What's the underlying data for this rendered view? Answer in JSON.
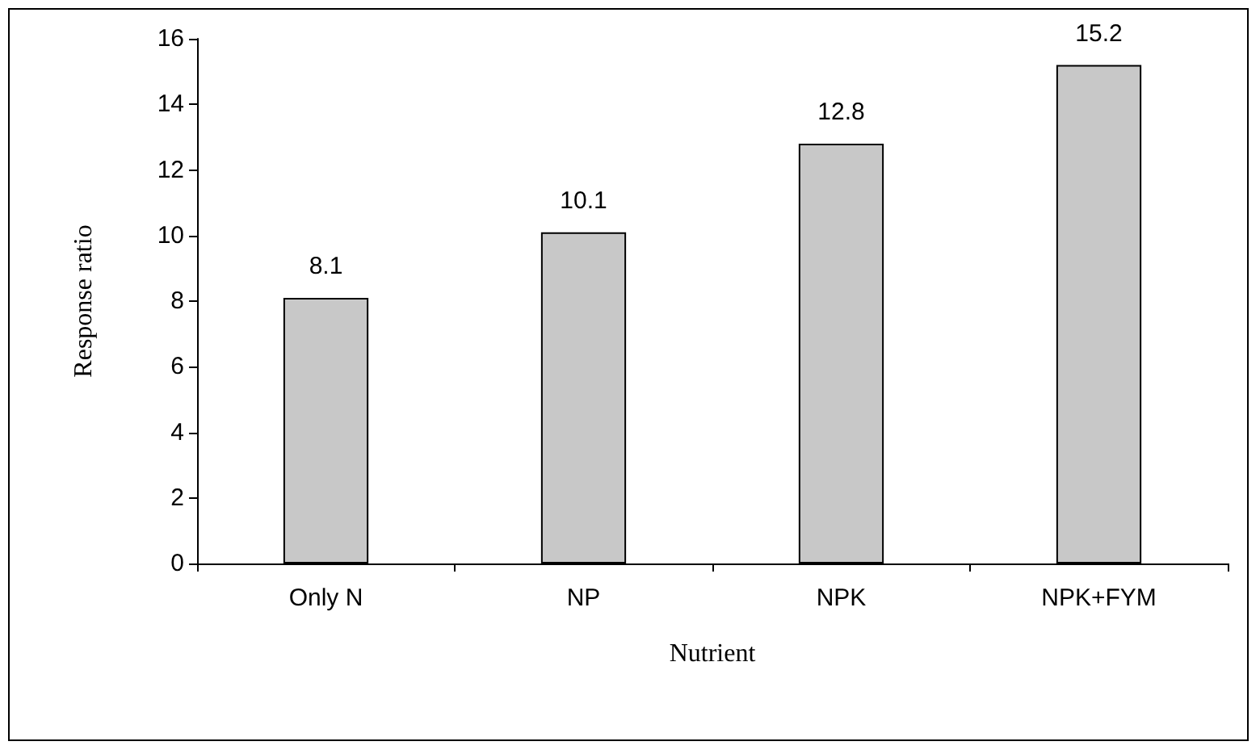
{
  "chart_data": {
    "type": "bar",
    "xlabel": "Nutrient",
    "ylabel": "Response ratio",
    "categories": [
      "Only N",
      "NP",
      "NPK",
      "NPK+FYM"
    ],
    "values": [
      8.1,
      10.1,
      12.8,
      15.2
    ],
    "color": "#c8c8c8",
    "ylim": [
      0,
      16
    ],
    "yticks": [
      0,
      2,
      4,
      6,
      8,
      10,
      12,
      14,
      16
    ],
    "grid": false,
    "data_labels": true
  }
}
